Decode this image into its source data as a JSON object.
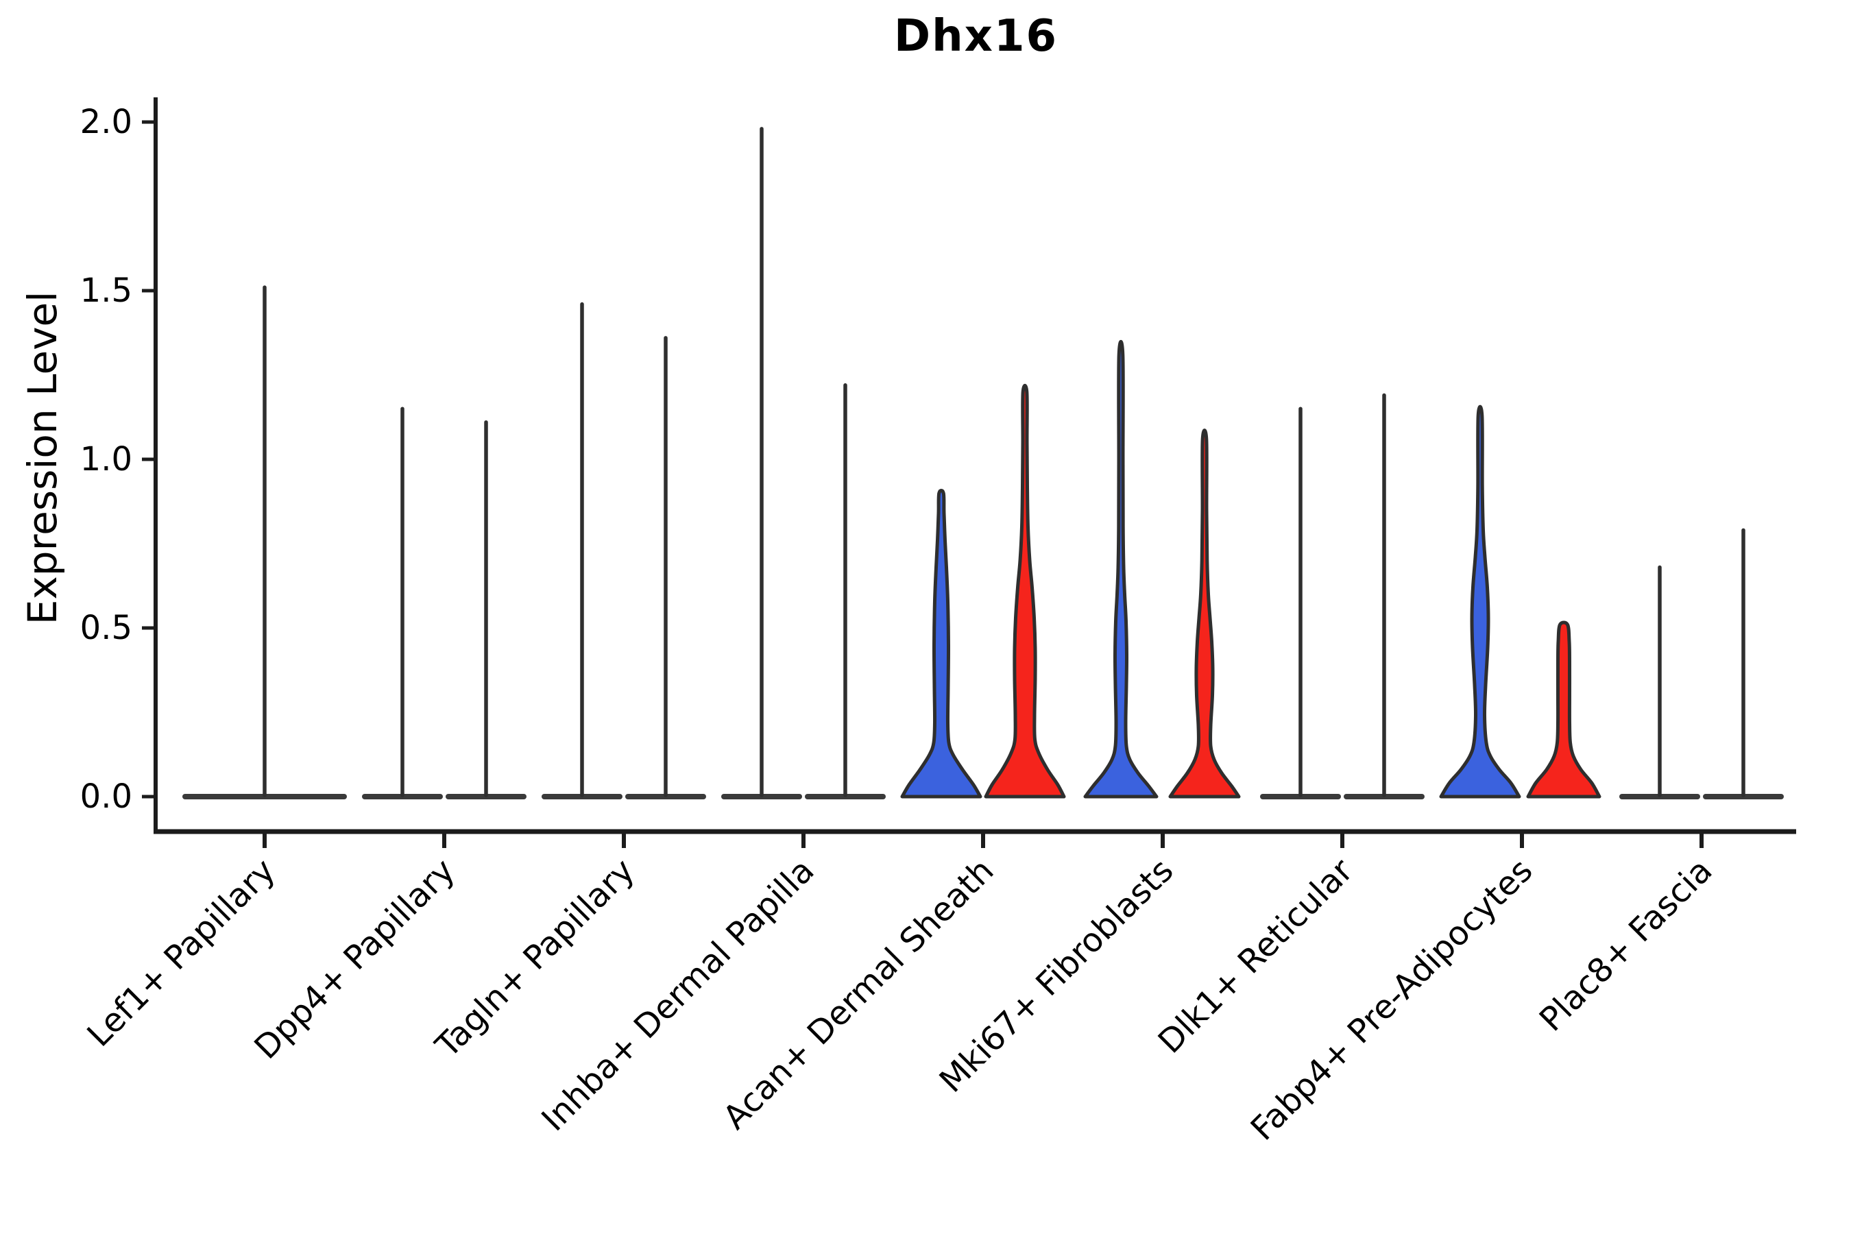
{
  "title": "Dhx16",
  "chart_data": {
    "type": "violin",
    "title": "Dhx16",
    "xlabel": "",
    "ylabel": "Expression Level",
    "ylim": [
      -0.1,
      2.07
    ],
    "yticks": [
      0.0,
      0.5,
      1.0,
      1.5,
      2.0
    ],
    "ytick_labels": [
      "0.0",
      "0.5",
      "1.0",
      "1.5",
      "2.0"
    ],
    "grid": false,
    "legend_position": "none",
    "colors": {
      "blue_fill": "#3B62DE",
      "red_fill": "#F5241C",
      "violin_outline": "#2E2E2E",
      "flat_bar": "#3A3A3A",
      "spike": "#2F2F2F",
      "axis": "#1C1C1C",
      "text": "#000000"
    },
    "categories": [
      {
        "label": "Lef1+ Papillary",
        "violins": [
          {
            "position": "center",
            "shape": "flat",
            "fill": null,
            "max_expression": 1.51
          }
        ]
      },
      {
        "label": "Dpp4+ Papillary",
        "violins": [
          {
            "position": "left",
            "shape": "flat",
            "fill": null,
            "max_expression": 1.15
          },
          {
            "position": "right",
            "shape": "flat",
            "fill": null,
            "max_expression": 1.11
          }
        ]
      },
      {
        "label": "Tagln+ Papillary",
        "violins": [
          {
            "position": "left",
            "shape": "flat",
            "fill": null,
            "max_expression": 1.46
          },
          {
            "position": "right",
            "shape": "flat",
            "fill": null,
            "max_expression": 1.36
          }
        ]
      },
      {
        "label": "Inhba+ Dermal Papilla",
        "violins": [
          {
            "position": "left",
            "shape": "flat",
            "fill": null,
            "max_expression": 1.98
          },
          {
            "position": "right",
            "shape": "flat",
            "fill": null,
            "max_expression": 1.22
          }
        ]
      },
      {
        "label": "Acan+ Dermal Sheath",
        "violins": [
          {
            "position": "left",
            "shape": "curved",
            "fill": "#3B62DE",
            "max_expression": 0.9,
            "profile": [
              [
                0,
                57
              ],
              [
                0.035,
                47
              ],
              [
                0.08,
                31
              ],
              [
                0.125,
                17
              ],
              [
                0.16,
                11
              ],
              [
                0.22,
                9.5
              ],
              [
                0.32,
                10
              ],
              [
                0.45,
                10.5
              ],
              [
                0.58,
                9.5
              ],
              [
                0.68,
                7.5
              ],
              [
                0.76,
                5.5
              ],
              [
                0.84,
                4
              ],
              [
                0.9,
                3.2
              ]
            ]
          },
          {
            "position": "right",
            "shape": "curved",
            "fill": "#F5241C",
            "max_expression": 1.2,
            "profile": [
              [
                0,
                57
              ],
              [
                0.035,
                48
              ],
              [
                0.08,
                33
              ],
              [
                0.13,
                20
              ],
              [
                0.17,
                14.5
              ],
              [
                0.24,
                14
              ],
              [
                0.35,
                15
              ],
              [
                0.44,
                15
              ],
              [
                0.53,
                13.5
              ],
              [
                0.62,
                10.5
              ],
              [
                0.7,
                7
              ],
              [
                0.8,
                4.5
              ],
              [
                0.92,
                3.5
              ],
              [
                1.05,
                3
              ],
              [
                1.2,
                2.8
              ]
            ]
          }
        ]
      },
      {
        "label": "Mki67+ Fibroblasts",
        "violins": [
          {
            "position": "left",
            "shape": "curved",
            "fill": "#3B62DE",
            "max_expression": 1.31,
            "profile": [
              [
                0,
                52
              ],
              [
                0.03,
                41
              ],
              [
                0.07,
                25
              ],
              [
                0.11,
                13
              ],
              [
                0.15,
                8
              ],
              [
                0.22,
                7
              ],
              [
                0.33,
                8
              ],
              [
                0.42,
                8.5
              ],
              [
                0.52,
                7.5
              ],
              [
                0.6,
                5.5
              ],
              [
                0.68,
                4
              ],
              [
                0.8,
                3.2
              ],
              [
                1.0,
                3
              ],
              [
                1.31,
                2.8
              ]
            ]
          },
          {
            "position": "right",
            "shape": "curved",
            "fill": "#F5241C",
            "max_expression": 1.06,
            "profile": [
              [
                0,
                50
              ],
              [
                0.03,
                40
              ],
              [
                0.07,
                25
              ],
              [
                0.11,
                14
              ],
              [
                0.15,
                9
              ],
              [
                0.21,
                9
              ],
              [
                0.3,
                11.5
              ],
              [
                0.38,
                12
              ],
              [
                0.46,
                10.5
              ],
              [
                0.53,
                8
              ],
              [
                0.6,
                5.5
              ],
              [
                0.7,
                3.8
              ],
              [
                0.85,
                3
              ],
              [
                1.06,
                2.8
              ]
            ]
          }
        ]
      },
      {
        "label": "Dlk1+ Reticular",
        "violins": [
          {
            "position": "left",
            "shape": "flat",
            "fill": null,
            "max_expression": 1.15
          },
          {
            "position": "right",
            "shape": "flat",
            "fill": null,
            "max_expression": 1.19
          }
        ]
      },
      {
        "label": "Fabp4+ Pre-Adipocytes",
        "violins": [
          {
            "position": "left",
            "shape": "curved",
            "fill": "#3B62DE",
            "max_expression": 1.13,
            "profile": [
              [
                0,
                57
              ],
              [
                0.04,
                45
              ],
              [
                0.08,
                28
              ],
              [
                0.12,
                15
              ],
              [
                0.16,
                9
              ],
              [
                0.24,
                6.5
              ],
              [
                0.33,
                8
              ],
              [
                0.44,
                11
              ],
              [
                0.53,
                12
              ],
              [
                0.62,
                10.5
              ],
              [
                0.71,
                7
              ],
              [
                0.79,
                4.5
              ],
              [
                0.92,
                3.2
              ],
              [
                1.13,
                2.8
              ]
            ]
          },
          {
            "position": "right",
            "shape": "curved",
            "fill": "#F5241C",
            "max_expression": 0.51,
            "profile": [
              [
                0,
                52
              ],
              [
                0.04,
                41
              ],
              [
                0.08,
                25
              ],
              [
                0.12,
                14
              ],
              [
                0.16,
                9.5
              ],
              [
                0.22,
                8.5
              ],
              [
                0.3,
                8.5
              ],
              [
                0.4,
                8.5
              ],
              [
                0.46,
                8
              ],
              [
                0.51,
                5.5
              ]
            ]
          }
        ]
      },
      {
        "label": "Plac8+ Fascia",
        "violins": [
          {
            "position": "left",
            "shape": "flat",
            "fill": null,
            "max_expression": 0.68
          },
          {
            "position": "right",
            "shape": "flat",
            "fill": null,
            "max_expression": 0.79
          }
        ]
      }
    ]
  }
}
